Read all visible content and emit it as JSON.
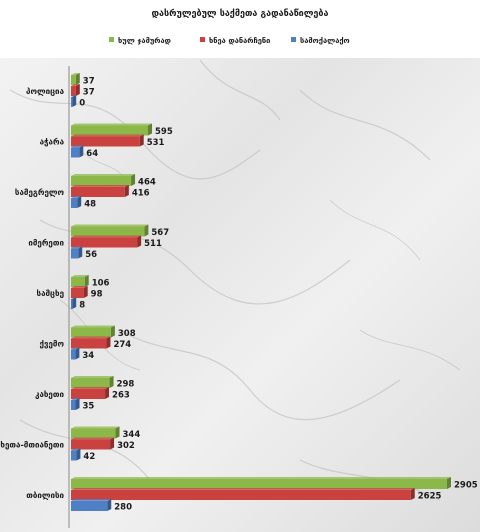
{
  "chart_data": {
    "type": "bar",
    "orientation": "horizontal",
    "title": "დასრულებულ საქმეთა გადანაწილება",
    "legend_position": "top",
    "categories": [
      "პოლიცია",
      "აჭარა",
      "სამეგრელო",
      "იმერეთი",
      "სამცხე",
      "ქვემო",
      "კახეთი",
      "მცხეთა-მთიანეთი",
      "თბილისი"
    ],
    "series": [
      {
        "name": "ხულ ჯამურად",
        "color": "#8cb84a",
        "values": [
          37,
          595,
          464,
          567,
          106,
          308,
          298,
          344,
          2905
        ]
      },
      {
        "name": "ხნეა დანარჩენი",
        "color": "#c9423f",
        "values": [
          37,
          531,
          416,
          511,
          98,
          274,
          263,
          302,
          2625
        ]
      },
      {
        "name": "სამოქალაქო",
        "color": "#4f7fc4",
        "values": [
          0,
          64,
          48,
          56,
          8,
          34,
          35,
          42,
          280
        ]
      }
    ],
    "xlim": [
      0,
      2905
    ],
    "grid": false
  }
}
